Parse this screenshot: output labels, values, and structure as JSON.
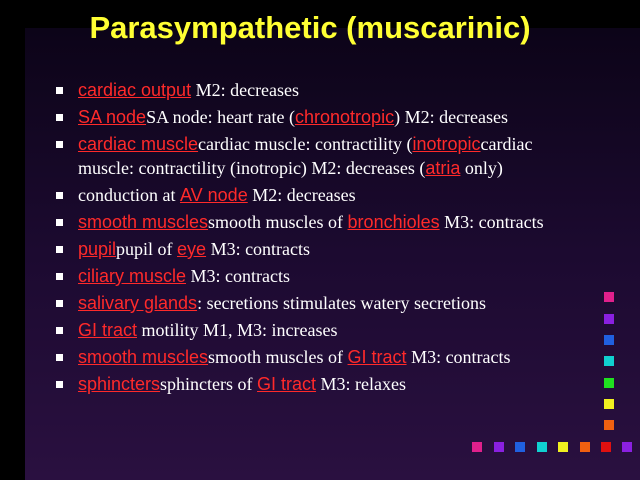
{
  "title": "Parasympathetic (muscarinic)",
  "items": [
    [
      {
        "link": "cardiac output"
      },
      {
        "text": " M2: decreases"
      }
    ],
    [
      {
        "link": "SA node"
      },
      {
        "text": "SA node: heart rate ("
      },
      {
        "link": "chronotropic"
      },
      {
        "text": ") M2: decreases"
      }
    ],
    [
      {
        "link": "cardiac muscle"
      },
      {
        "text": "cardiac muscle: contractility ("
      },
      {
        "link": "inotropic"
      },
      {
        "text": "cardiac muscle: contractility (inotropic) M2: decreases ("
      },
      {
        "link": "atria"
      },
      {
        "text": " only)"
      }
    ],
    [
      {
        "text": "conduction at "
      },
      {
        "link": "AV node"
      },
      {
        "text": " M2: decreases"
      }
    ],
    [
      {
        "link": "smooth muscles"
      },
      {
        "text": "smooth muscles of "
      },
      {
        "link": "bronchioles"
      },
      {
        "text": " M3: contracts"
      }
    ],
    [
      {
        "link": "pupil"
      },
      {
        "text": "pupil of "
      },
      {
        "link": "eye"
      },
      {
        "text": " M3: contracts"
      }
    ],
    [
      {
        "link": "ciliary muscle"
      },
      {
        "text": " M3: contracts"
      }
    ],
    [
      {
        "link": "salivary glands"
      },
      {
        "text": ": secretions stimulates watery secretions"
      }
    ],
    [
      {
        "link": "GI tract"
      },
      {
        "text": " motility M1, M3: increases"
      }
    ],
    [
      {
        "link": "smooth muscles"
      },
      {
        "text": "smooth muscles of "
      },
      {
        "link": "GI tract"
      },
      {
        "text": " M3: contracts"
      }
    ],
    [
      {
        "link": "sphincters"
      },
      {
        "text": "sphincters of "
      },
      {
        "link": "GI tract"
      },
      {
        "text": " M3: relaxes"
      }
    ]
  ]
}
